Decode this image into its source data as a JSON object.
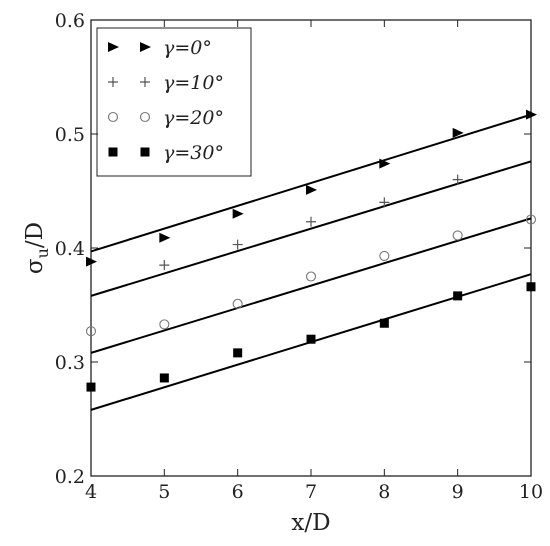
{
  "chart_data": {
    "type": "scatter",
    "xlabel": "x/D",
    "ylabel": {
      "base": "σ",
      "sub": "u",
      "rest": "/D"
    },
    "x": [
      4,
      5,
      6,
      7,
      8,
      9,
      10
    ],
    "xlim": [
      4,
      10
    ],
    "xticks": [
      4,
      5,
      6,
      7,
      8,
      9,
      10
    ],
    "ylim": [
      0.2,
      0.6
    ],
    "yticks": [
      0.2,
      0.3,
      0.4,
      0.5,
      0.6
    ],
    "legend": "upper-left",
    "series": [
      {
        "name": "γ=0°",
        "marker": "triangle-right",
        "color": "#000000",
        "values": [
          0.388,
          0.409,
          0.43,
          0.451,
          0.474,
          0.501,
          0.517
        ],
        "fit": [
          0.397,
          0.517
        ]
      },
      {
        "name": "γ=10°",
        "marker": "plus",
        "color": "#555555",
        "values": [
          null,
          0.385,
          0.403,
          0.423,
          0.44,
          0.46,
          null
        ],
        "fit": [
          0.358,
          0.476
        ]
      },
      {
        "name": "γ=20°",
        "marker": "circle-open",
        "color": "#777777",
        "values": [
          0.327,
          0.333,
          0.351,
          0.375,
          0.393,
          0.411,
          0.425
        ],
        "fit": [
          0.308,
          0.426
        ]
      },
      {
        "name": "γ=30°",
        "marker": "square",
        "color": "#000000",
        "values": [
          0.278,
          0.286,
          0.308,
          0.32,
          0.334,
          0.358,
          0.366
        ],
        "fit": [
          0.258,
          0.377
        ]
      }
    ]
  }
}
